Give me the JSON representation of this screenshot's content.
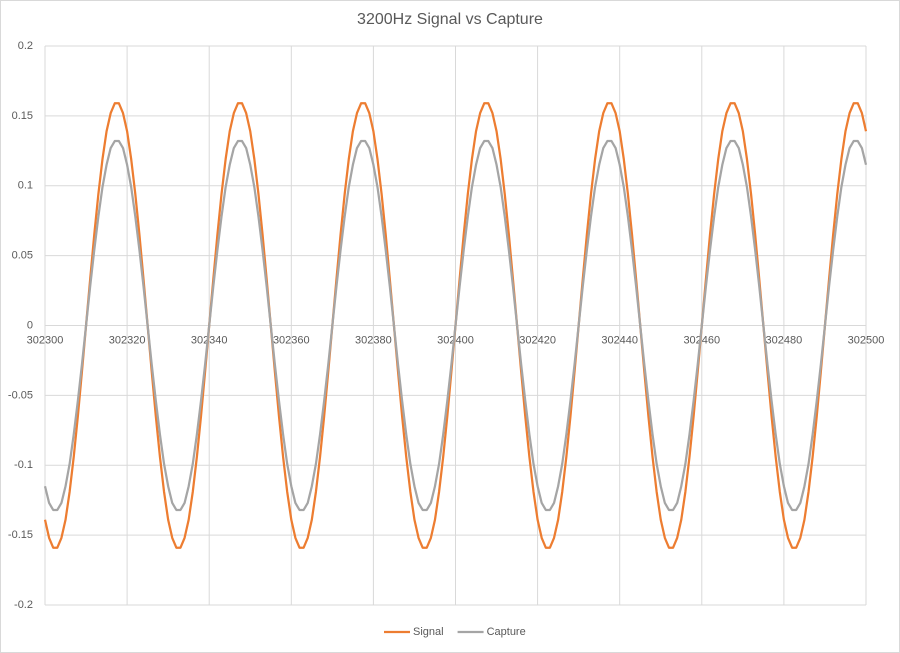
{
  "chart_data": {
    "type": "line",
    "title": "3200Hz Signal vs Capture",
    "x": [
      302300,
      302301,
      302302,
      302303,
      302304,
      302305,
      302306,
      302307,
      302308,
      302309,
      302310,
      302311,
      302312,
      302313,
      302314,
      302315,
      302316,
      302317,
      302318,
      302319,
      302320,
      302321,
      302322,
      302323,
      302324,
      302325,
      302326,
      302327,
      302328,
      302329,
      302330,
      302331,
      302332,
      302333,
      302334,
      302335,
      302336,
      302337,
      302338,
      302339,
      302340,
      302341,
      302342,
      302343,
      302344,
      302345,
      302346,
      302347,
      302348,
      302349,
      302350,
      302351,
      302352,
      302353,
      302354,
      302355,
      302356,
      302357,
      302358,
      302359,
      302360,
      302361,
      302362,
      302363,
      302364,
      302365,
      302366,
      302367,
      302368,
      302369,
      302370,
      302371,
      302372,
      302373,
      302374,
      302375,
      302376,
      302377,
      302378,
      302379,
      302380,
      302381,
      302382,
      302383,
      302384,
      302385,
      302386,
      302387,
      302388,
      302389,
      302390,
      302391,
      302392,
      302393,
      302394,
      302395,
      302396,
      302397,
      302398,
      302399,
      302400,
      302401,
      302402,
      302403,
      302404,
      302405,
      302406,
      302407,
      302408,
      302409,
      302410,
      302411,
      302412,
      302413,
      302414,
      302415,
      302416,
      302417,
      302418,
      302419,
      302420,
      302421,
      302422,
      302423,
      302424,
      302425,
      302426,
      302427,
      302428,
      302429,
      302430,
      302431,
      302432,
      302433,
      302434,
      302435,
      302436,
      302437,
      302438,
      302439,
      302440,
      302441,
      302442,
      302443,
      302444,
      302445,
      302446,
      302447,
      302448,
      302449,
      302450,
      302451,
      302452,
      302453,
      302454,
      302455,
      302456,
      302457,
      302458,
      302459,
      302460,
      302461,
      302462,
      302463,
      302464,
      302465,
      302466,
      302467,
      302468,
      302469,
      302470,
      302471,
      302472,
      302473,
      302474,
      302475,
      302476,
      302477,
      302478,
      302479,
      302480,
      302481,
      302482,
      302483,
      302484,
      302485,
      302486,
      302487,
      302488,
      302489,
      302490,
      302491,
      302492,
      302493,
      302494,
      302495,
      302496,
      302497,
      302498,
      302499,
      302500
    ],
    "series": [
      {
        "name": "Signal",
        "color": "#ed7d31",
        "values": [
          -0.139,
          -0.152,
          -0.159,
          -0.159,
          -0.152,
          -0.139,
          -0.119,
          -0.094,
          -0.065,
          -0.033,
          0,
          0.033,
          0.065,
          0.094,
          0.119,
          0.139,
          0.152,
          0.159,
          0.159,
          0.152,
          0.139,
          0.119,
          0.094,
          0.065,
          0.033,
          0,
          -0.033,
          -0.065,
          -0.094,
          -0.119,
          -0.139,
          -0.152,
          -0.159,
          -0.159,
          -0.152,
          -0.139,
          -0.119,
          -0.094,
          -0.065,
          -0.033,
          0,
          0.033,
          0.065,
          0.094,
          0.119,
          0.139,
          0.152,
          0.159,
          0.159,
          0.152,
          0.139,
          0.119,
          0.094,
          0.065,
          0.033,
          0,
          -0.033,
          -0.065,
          -0.094,
          -0.119,
          -0.139,
          -0.152,
          -0.159,
          -0.159,
          -0.152,
          -0.139,
          -0.119,
          -0.094,
          -0.065,
          -0.033,
          0,
          0.033,
          0.065,
          0.094,
          0.119,
          0.139,
          0.152,
          0.159,
          0.159,
          0.152,
          0.139,
          0.119,
          0.094,
          0.065,
          0.033,
          0,
          -0.033,
          -0.065,
          -0.094,
          -0.119,
          -0.139,
          -0.152,
          -0.159,
          -0.159,
          -0.152,
          -0.139,
          -0.119,
          -0.094,
          -0.065,
          -0.033,
          0,
          0.033,
          0.065,
          0.094,
          0.119,
          0.139,
          0.152,
          0.159,
          0.159,
          0.152,
          0.139,
          0.119,
          0.094,
          0.065,
          0.033,
          0,
          -0.033,
          -0.065,
          -0.094,
          -0.119,
          -0.139,
          -0.152,
          -0.159,
          -0.159,
          -0.152,
          -0.139,
          -0.119,
          -0.094,
          -0.065,
          -0.033,
          0,
          0.033,
          0.065,
          0.094,
          0.119,
          0.139,
          0.152,
          0.159,
          0.159,
          0.152,
          0.139,
          0.119,
          0.094,
          0.065,
          0.033,
          0,
          -0.033,
          -0.065,
          -0.094,
          -0.119,
          -0.139,
          -0.152,
          -0.159,
          -0.159,
          -0.152,
          -0.139,
          -0.119,
          -0.094,
          -0.065,
          -0.033,
          0,
          0.033,
          0.065,
          0.094,
          0.119,
          0.139,
          0.152,
          0.159,
          0.159,
          0.152,
          0.139,
          0.119,
          0.094,
          0.065,
          0.033,
          0,
          -0.033,
          -0.065,
          -0.094,
          -0.119,
          -0.139,
          -0.152,
          -0.159,
          -0.159,
          -0.152,
          -0.139,
          -0.119,
          -0.094,
          -0.065,
          -0.033,
          0,
          0.033,
          0.065,
          0.094,
          0.119,
          0.139,
          0.152,
          0.159,
          0.159,
          0.152,
          0.139
        ]
      },
      {
        "name": "Capture",
        "color": "#a5a5a5",
        "values": [
          -0.115,
          -0.127,
          -0.132,
          -0.132,
          -0.127,
          -0.115,
          -0.099,
          -0.078,
          -0.054,
          -0.028,
          0,
          0.028,
          0.054,
          0.078,
          0.099,
          0.115,
          0.127,
          0.132,
          0.132,
          0.127,
          0.115,
          0.099,
          0.078,
          0.054,
          0.028,
          0,
          -0.028,
          -0.054,
          -0.078,
          -0.099,
          -0.115,
          -0.127,
          -0.132,
          -0.132,
          -0.127,
          -0.115,
          -0.099,
          -0.078,
          -0.054,
          -0.028,
          0,
          0.028,
          0.054,
          0.078,
          0.099,
          0.115,
          0.127,
          0.132,
          0.132,
          0.127,
          0.115,
          0.099,
          0.078,
          0.054,
          0.028,
          0,
          -0.028,
          -0.054,
          -0.078,
          -0.099,
          -0.115,
          -0.127,
          -0.132,
          -0.132,
          -0.127,
          -0.115,
          -0.099,
          -0.078,
          -0.054,
          -0.028,
          0,
          0.028,
          0.054,
          0.078,
          0.099,
          0.115,
          0.127,
          0.132,
          0.132,
          0.127,
          0.115,
          0.099,
          0.078,
          0.054,
          0.028,
          0,
          -0.028,
          -0.054,
          -0.078,
          -0.099,
          -0.115,
          -0.127,
          -0.132,
          -0.132,
          -0.127,
          -0.115,
          -0.099,
          -0.078,
          -0.054,
          -0.028,
          0,
          0.028,
          0.054,
          0.078,
          0.099,
          0.115,
          0.127,
          0.132,
          0.132,
          0.127,
          0.115,
          0.099,
          0.078,
          0.054,
          0.028,
          0,
          -0.028,
          -0.054,
          -0.078,
          -0.099,
          -0.115,
          -0.127,
          -0.132,
          -0.132,
          -0.127,
          -0.115,
          -0.099,
          -0.078,
          -0.054,
          -0.028,
          0,
          0.028,
          0.054,
          0.078,
          0.099,
          0.115,
          0.127,
          0.132,
          0.132,
          0.127,
          0.115,
          0.099,
          0.078,
          0.054,
          0.028,
          0,
          -0.028,
          -0.054,
          -0.078,
          -0.099,
          -0.115,
          -0.127,
          -0.132,
          -0.132,
          -0.127,
          -0.115,
          -0.099,
          -0.078,
          -0.054,
          -0.028,
          0,
          0.028,
          0.054,
          0.078,
          0.099,
          0.115,
          0.127,
          0.132,
          0.132,
          0.127,
          0.115,
          0.099,
          0.078,
          0.054,
          0.028,
          0,
          -0.028,
          -0.054,
          -0.078,
          -0.099,
          -0.115,
          -0.127,
          -0.132,
          -0.132,
          -0.127,
          -0.115,
          -0.099,
          -0.078,
          -0.054,
          -0.028,
          0,
          0.028,
          0.054,
          0.078,
          0.099,
          0.115,
          0.127,
          0.132,
          0.132,
          0.127,
          0.115
        ]
      }
    ],
    "xlim": [
      302300,
      302500
    ],
    "xticks": [
      302300,
      302320,
      302340,
      302360,
      302380,
      302400,
      302420,
      302440,
      302460,
      302480,
      302500
    ],
    "ylim": [
      -0.2,
      0.2
    ],
    "yticks": [
      -0.2,
      -0.15,
      -0.1,
      -0.05,
      0,
      0.05,
      0.1,
      0.15,
      0.2
    ],
    "grid": true,
    "legend": "bottom"
  }
}
